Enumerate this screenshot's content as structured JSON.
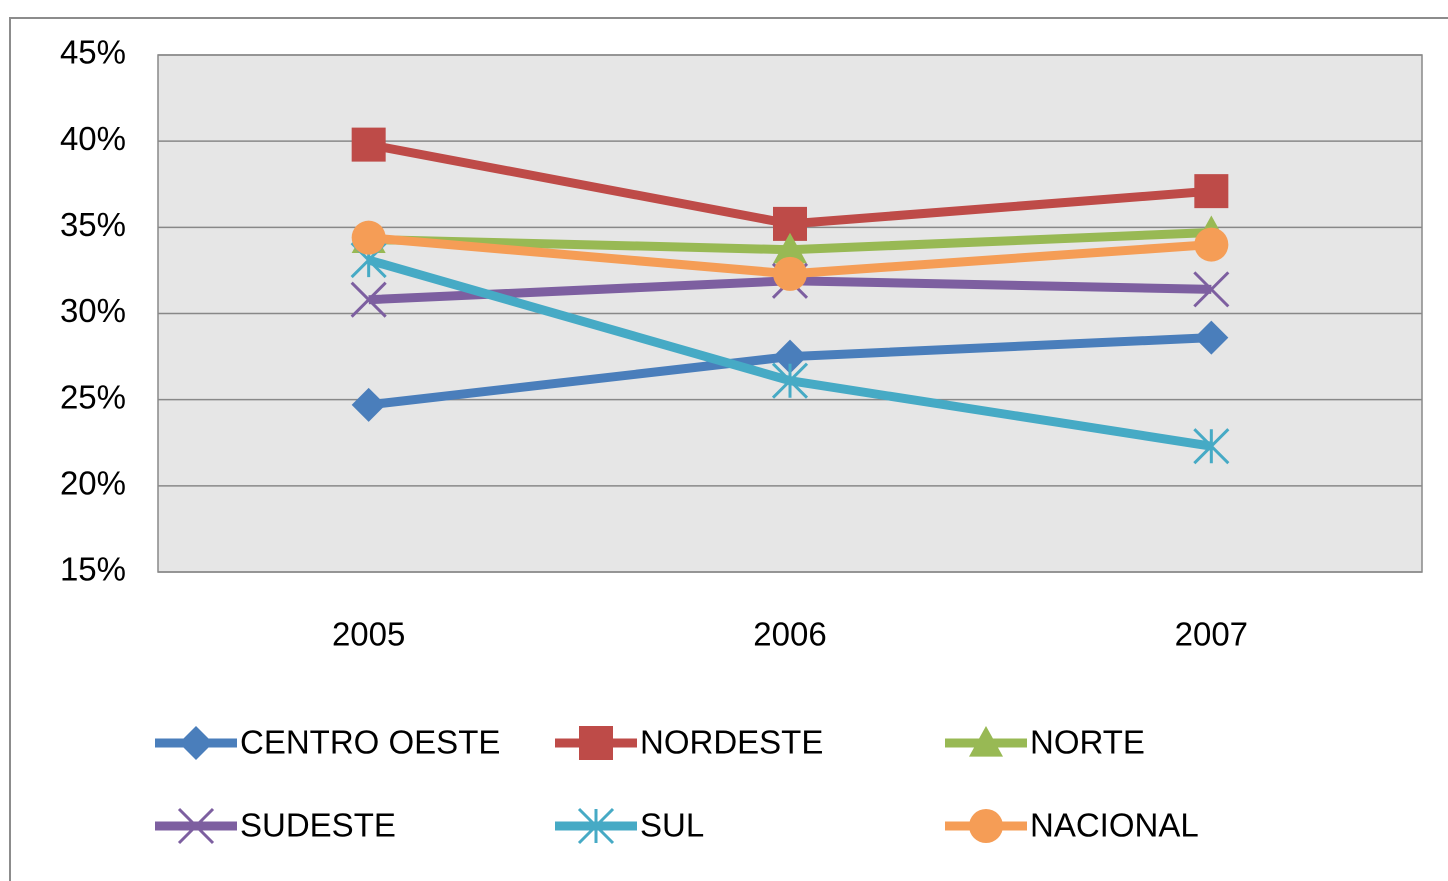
{
  "chart_data": {
    "type": "line",
    "categories": [
      "2005",
      "2006",
      "2007"
    ],
    "series": [
      {
        "name": "CENTRO OESTE",
        "color": "#4a7ebb",
        "marker": "diamond",
        "values": [
          24.7,
          27.5,
          28.6
        ]
      },
      {
        "name": "NORDESTE",
        "color": "#be4b48",
        "marker": "square",
        "values": [
          39.8,
          35.2,
          37.1
        ]
      },
      {
        "name": "NORTE",
        "color": "#98b954",
        "marker": "triangle",
        "values": [
          34.3,
          33.7,
          34.7
        ]
      },
      {
        "name": "SUDESTE",
        "color": "#7d5fa0",
        "marker": "x",
        "values": [
          30.8,
          31.9,
          31.4
        ]
      },
      {
        "name": "SUL",
        "color": "#46aac5",
        "marker": "star",
        "values": [
          33.1,
          26.1,
          22.3
        ]
      },
      {
        "name": "NACIONAL",
        "color": "#f59d56",
        "marker": "circle",
        "values": [
          34.4,
          32.3,
          34.0
        ]
      }
    ],
    "ylim": [
      15,
      45
    ],
    "yticks": [
      {
        "value": 15,
        "label": "15%"
      },
      {
        "value": 20,
        "label": "20%"
      },
      {
        "value": 25,
        "label": "25%"
      },
      {
        "value": 30,
        "label": "30%"
      },
      {
        "value": 35,
        "label": "35%"
      },
      {
        "value": 40,
        "label": "40%"
      },
      {
        "value": 45,
        "label": "45%"
      }
    ],
    "grid": true,
    "legend": "bottom"
  }
}
